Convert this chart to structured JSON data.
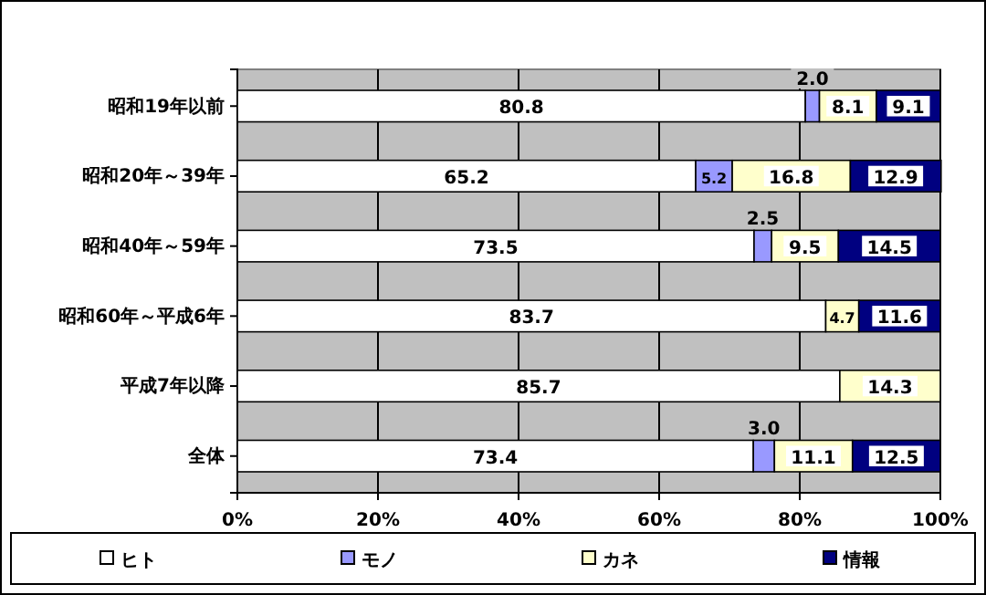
{
  "chart_data": {
    "type": "bar",
    "orientation": "horizontal",
    "stacked": true,
    "categories": [
      "昭和19年以前",
      "昭和20年～39年",
      "昭和40年～59年",
      "昭和60年～平成6年",
      "平成7年以降",
      "全体"
    ],
    "series": [
      {
        "name": "ヒト",
        "color": "#ffffff",
        "values": [
          80.8,
          65.2,
          73.5,
          83.7,
          85.7,
          73.4
        ],
        "value_labels": [
          "80.8",
          "65.2",
          "73.5",
          "83.7",
          "85.7",
          "73.4"
        ]
      },
      {
        "name": "モノ",
        "color": "#9999ff",
        "values": [
          2.0,
          5.2,
          2.5,
          null,
          null,
          3.0
        ],
        "value_labels": [
          "2.0",
          "5.2",
          "2.5",
          null,
          null,
          "3.0"
        ]
      },
      {
        "name": "カネ",
        "color": "#ffffcc",
        "values": [
          8.1,
          16.8,
          9.5,
          4.7,
          14.3,
          11.1
        ],
        "value_labels": [
          "8.1",
          "16.8",
          "9.5",
          "4.7",
          "14.3",
          "11.1"
        ]
      },
      {
        "name": "情報",
        "color": "#000080",
        "values": [
          9.1,
          12.9,
          14.5,
          11.6,
          null,
          12.5
        ],
        "value_labels": [
          "9.1",
          "12.9",
          "14.5",
          "11.6",
          null,
          "12.5"
        ]
      }
    ],
    "xlim": [
      0,
      100
    ],
    "xticks": [
      {
        "value": 0,
        "label": "0%"
      },
      {
        "value": 20,
        "label": "20%"
      },
      {
        "value": 40,
        "label": "40%"
      },
      {
        "value": 60,
        "label": "60%"
      },
      {
        "value": 80,
        "label": "80%"
      },
      {
        "value": 100,
        "label": "100%"
      }
    ],
    "grid": "x",
    "legend": "bottom"
  }
}
